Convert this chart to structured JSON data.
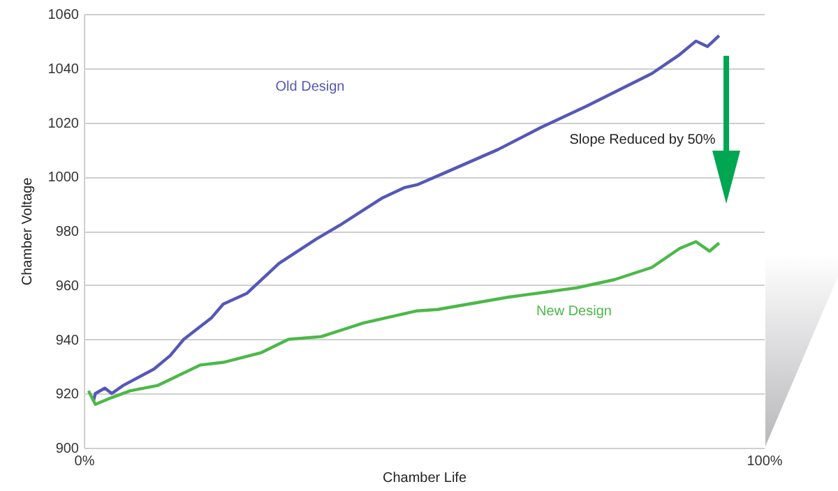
{
  "chart_data": {
    "type": "line",
    "xlabel": "Chamber Life",
    "ylabel": "Chamber Voltage",
    "xlim": [
      0,
      100
    ],
    "xticks": [
      {
        "value": 0,
        "label": "0%"
      },
      {
        "value": 100,
        "label": "100%"
      }
    ],
    "ylim": [
      900,
      1060
    ],
    "yticks": [
      900,
      920,
      940,
      960,
      980,
      1000,
      1020,
      1040,
      1060
    ],
    "grid": "y",
    "legend": false,
    "annotations": [
      "Slope Reduced by 50%"
    ],
    "series": [
      {
        "name": "Old Design",
        "color": "#5558b8",
        "x": [
          1.4,
          1.7,
          3.1,
          4.1,
          5.8,
          10.3,
          12.7,
          14.7,
          18.8,
          20.5,
          24.0,
          28.7,
          34.2,
          37.6,
          43.8,
          47.2,
          49.0,
          52.7,
          60.9,
          67.1,
          73.9,
          83.5,
          87.6,
          90.0,
          91.7,
          93.4
        ],
        "values": [
          917,
          920,
          922,
          920,
          923,
          929,
          934,
          940,
          948,
          953,
          957,
          968,
          977,
          982,
          992,
          996,
          997,
          1001,
          1010,
          1018,
          1026,
          1038,
          1045,
          1050,
          1048,
          1052
        ]
      },
      {
        "name": "New Design",
        "color": "#4cb848",
        "x": [
          0.7,
          1.7,
          4.1,
          6.8,
          10.9,
          17.1,
          20.5,
          26.0,
          30.1,
          34.9,
          41.1,
          49.0,
          52.0,
          62.3,
          72.5,
          78.0,
          83.5,
          87.6,
          90.0,
          92.0,
          93.4
        ],
        "values": [
          921,
          916,
          918.5,
          921,
          923,
          930.5,
          931.5,
          935,
          940,
          941,
          946,
          950.5,
          951,
          955.5,
          959,
          962,
          966.5,
          973.5,
          976,
          972.5,
          975.5
        ]
      }
    ]
  }
}
